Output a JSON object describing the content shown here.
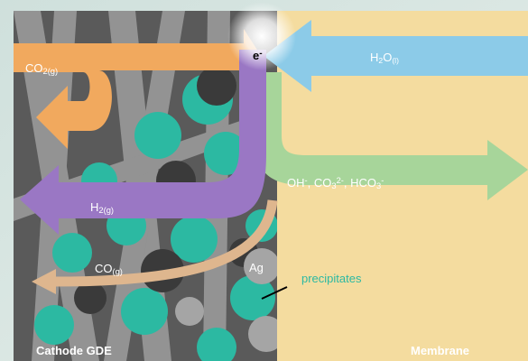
{
  "labels": {
    "co2": [
      {
        "text": "CO"
      },
      {
        "text": "2(g)",
        "script": "sub"
      }
    ],
    "electron": [
      {
        "text": "e"
      },
      {
        "text": "-",
        "script": "sup"
      }
    ],
    "water": [
      {
        "text": "H"
      },
      {
        "text": "2",
        "script": "sub"
      },
      {
        "text": "O"
      },
      {
        "text": "(l)",
        "script": "sub"
      }
    ],
    "ions": [
      {
        "text": "OH"
      },
      {
        "text": "-",
        "script": "sup"
      },
      {
        "text": ", CO"
      },
      {
        "text": "3",
        "script": "sub"
      },
      {
        "text": "2-",
        "script": "sup"
      },
      {
        "text": ", HCO"
      },
      {
        "text": "3",
        "script": "sub"
      },
      {
        "text": "-",
        "script": "sup"
      }
    ],
    "hydrogen": [
      {
        "text": "H"
      },
      {
        "text": "2(g)",
        "script": "sub"
      }
    ],
    "co": [
      {
        "text": "CO"
      },
      {
        "text": "(g)",
        "script": "sub"
      }
    ],
    "silver": [
      {
        "text": "Ag"
      }
    ],
    "precipitates": [
      {
        "text": "precipitates"
      }
    ],
    "cathode": [
      {
        "text": "Cathode GDE"
      }
    ],
    "membrane": [
      {
        "text": "Membrane"
      }
    ]
  }
}
